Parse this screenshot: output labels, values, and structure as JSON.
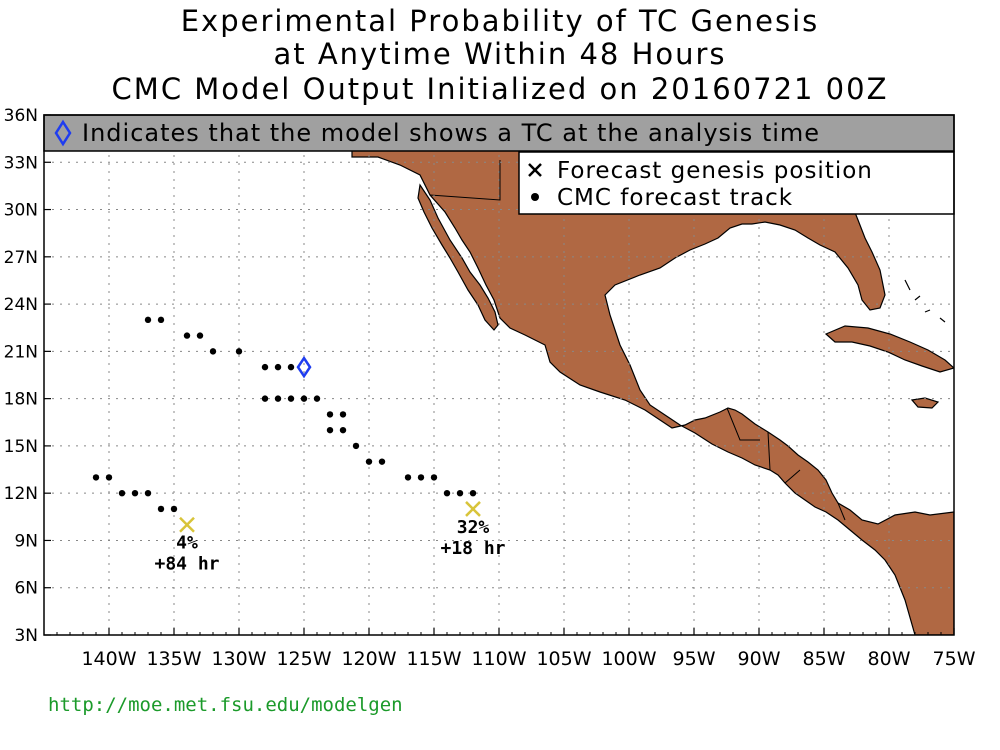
{
  "title": {
    "line1": "Experimental Probability of TC Genesis",
    "line2": "at Anytime Within 48 Hours",
    "line3": "CMC Model Output Initialized on 20160721 00Z"
  },
  "banner": {
    "text": "Indicates that the model shows a TC at the analysis time",
    "icon": "diamond-icon"
  },
  "legend": {
    "genesis_label": "Forecast genesis position",
    "track_label": "CMC forecast track",
    "genesis_icon": "x-mark-icon",
    "track_icon": "dot-icon"
  },
  "footer": {
    "url": "http://moe.met.fsu.edu/modelgen"
  },
  "colors": {
    "land": "#b06843",
    "banner_bg": "#a0a0a0",
    "diamond": "#1f3df0",
    "genesis_x": "#d8c43a",
    "url": "#1b9a2a"
  },
  "map": {
    "lon_range": [
      -145,
      -75
    ],
    "lat_range": [
      3,
      36
    ],
    "x_ticks": [
      "140W",
      "135W",
      "130W",
      "125W",
      "120W",
      "115W",
      "110W",
      "105W",
      "100W",
      "95W",
      "90W",
      "85W",
      "80W",
      "75W"
    ],
    "y_ticks": [
      "3N",
      "6N",
      "9N",
      "12N",
      "15N",
      "18N",
      "21N",
      "24N",
      "27N",
      "30N",
      "33N",
      "36N"
    ],
    "grid": "dotted"
  },
  "analysis_tc": {
    "lon": -125,
    "lat": 20
  },
  "genesis": [
    {
      "lon": -134,
      "lat": 10,
      "prob": "4%",
      "lead": "+84 hr"
    },
    {
      "lon": -112,
      "lat": 11,
      "prob": "32%",
      "lead": "+18 hr"
    }
  ],
  "tracks": [
    {
      "points": [
        [
          -141,
          13
        ],
        [
          -140,
          13
        ],
        [
          -139,
          12
        ],
        [
          -138,
          12
        ],
        [
          -137,
          12
        ],
        [
          -136,
          11
        ],
        [
          -135,
          11
        ]
      ]
    },
    {
      "points": [
        [
          -137,
          23
        ],
        [
          -136,
          23
        ],
        [
          -134,
          22
        ],
        [
          -133,
          22
        ],
        [
          -132,
          21
        ],
        [
          -130,
          21
        ],
        [
          -128,
          20
        ],
        [
          -127,
          20
        ],
        [
          -126,
          20
        ]
      ]
    },
    {
      "points": [
        [
          -128,
          18
        ],
        [
          -127,
          18
        ],
        [
          -126,
          18
        ],
        [
          -125,
          18
        ],
        [
          -124,
          18
        ],
        [
          -123,
          17
        ],
        [
          -122,
          17
        ],
        [
          -123,
          16
        ],
        [
          -122,
          16
        ],
        [
          -121,
          15
        ],
        [
          -120,
          14
        ],
        [
          -119,
          14
        ],
        [
          -117,
          13
        ],
        [
          -116,
          13
        ],
        [
          -115,
          13
        ],
        [
          -114,
          12
        ],
        [
          -113,
          12
        ],
        [
          -112,
          12
        ]
      ]
    }
  ]
}
